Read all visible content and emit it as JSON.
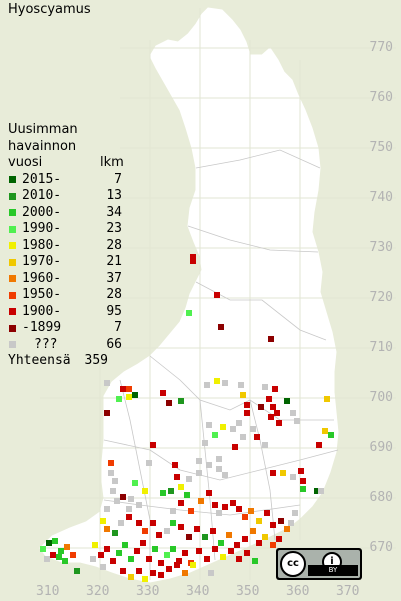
{
  "title": "Hyoscyamus",
  "colors": {
    "background": "#e8ecd9",
    "land": "#ffffff",
    "borders": "#c8c8c8",
    "axis_text": "#b3b3b3"
  },
  "legend": {
    "heading1": "Uusimman",
    "heading2": "havainnon",
    "heading3": "vuosi",
    "count_header": "lkm",
    "entries": [
      {
        "label": "2015-",
        "count": "7",
        "color": "#006400"
      },
      {
        "label": "2010-",
        "count": "13",
        "color": "#1e961e"
      },
      {
        "label": "2000-",
        "count": "34",
        "color": "#28c828"
      },
      {
        "label": "1990-",
        "count": "23",
        "color": "#50f050"
      },
      {
        "label": "1980-",
        "count": "28",
        "color": "#f0f000"
      },
      {
        "label": "1970-",
        "count": "21",
        "color": "#f0c800"
      },
      {
        "label": "1960-",
        "count": "37",
        "color": "#f07800"
      },
      {
        "label": "1950-",
        "count": "28",
        "color": "#f03c00"
      },
      {
        "label": "1900-",
        "count": "95",
        "color": "#c80000"
      },
      {
        "label": "-1899",
        "count": "7",
        "color": "#8c0000"
      },
      {
        "label": "???",
        "count": "66",
        "color": "#c8c8c8"
      }
    ],
    "total_label": "Yhteensä",
    "total_count": "359"
  },
  "axes": {
    "y_ticks": [
      "770",
      "760",
      "750",
      "740",
      "730",
      "720",
      "710",
      "700",
      "690",
      "680",
      "670"
    ],
    "x_ticks": [
      "310",
      "320",
      "330",
      "340",
      "350",
      "360",
      "370"
    ]
  },
  "license": {
    "cc": "cc",
    "by_icon": "i",
    "by_text": "BY",
    "icon": "cc-by-license-icon"
  }
}
